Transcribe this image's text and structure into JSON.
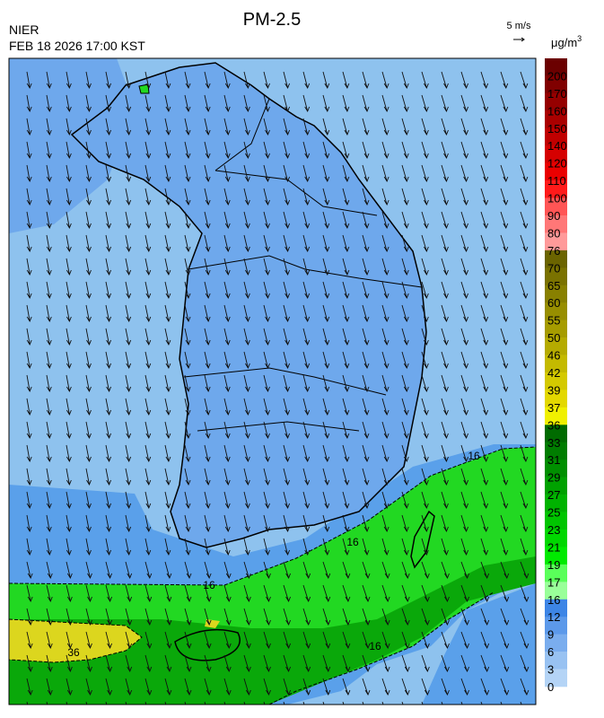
{
  "header": {
    "title": "PM-2.5",
    "agency": "NIER",
    "timestamp": "FEB 18 2026 17:00 KST",
    "wind_scale": "5 m/s"
  },
  "legend": {
    "unit": "μg/m",
    "unit_exponent": "3",
    "levels": [
      200,
      170,
      160,
      150,
      140,
      120,
      110,
      100,
      90,
      80,
      76,
      70,
      65,
      60,
      55,
      50,
      46,
      42,
      39,
      37,
      36,
      33,
      31,
      29,
      27,
      25,
      23,
      21,
      19,
      17,
      16,
      12,
      9,
      6,
      3,
      0
    ],
    "colors": [
      "#6b0000",
      "#800000",
      "#950000",
      "#aa0000",
      "#c00000",
      "#d50000",
      "#ea0000",
      "#ff1a1a",
      "#ff5555",
      "#ff7777",
      "#ff9a9a",
      "#6b6400",
      "#7a7200",
      "#888000",
      "#978e00",
      "#a69c00",
      "#b5ab00",
      "#c4ba00",
      "#d4c900",
      "#e3d800",
      "#f0f000",
      "#006b00",
      "#007d00",
      "#008f00",
      "#00a100",
      "#00b300",
      "#00c500",
      "#00d700",
      "#00ea00",
      "#5aff5a",
      "#99ff99",
      "#3d85e6",
      "#5c99ea",
      "#7aadee",
      "#98c2f2",
      "#b4d4f6"
    ]
  },
  "contour_labels": [
    "16",
    "16",
    "16",
    "16",
    "36"
  ]
}
